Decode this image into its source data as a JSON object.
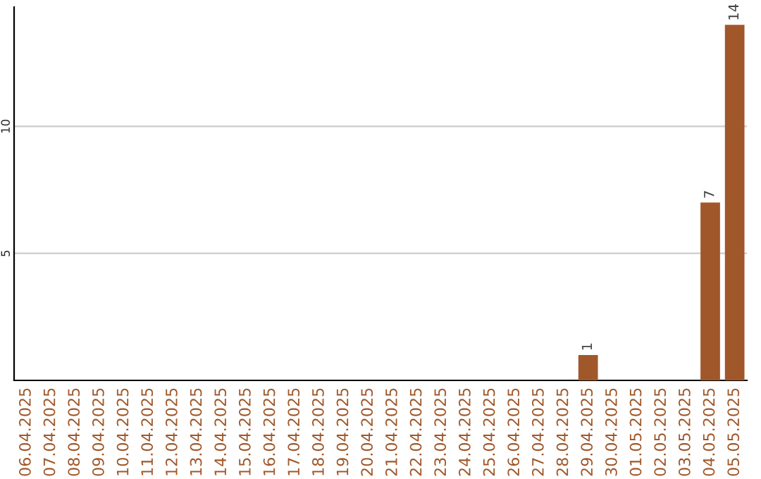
{
  "chart_data": {
    "type": "bar",
    "categories": [
      "06.04.2025",
      "07.04.2025",
      "08.04.2025",
      "09.04.2025",
      "10.04.2025",
      "11.04.2025",
      "12.04.2025",
      "13.04.2025",
      "14.04.2025",
      "15.04.2025",
      "16.04.2025",
      "17.04.2025",
      "18.04.2025",
      "19.04.2025",
      "20.04.2025",
      "21.04.2025",
      "22.04.2025",
      "23.04.2025",
      "24.04.2025",
      "25.04.2025",
      "26.04.2025",
      "27.04.2025",
      "28.04.2025",
      "29.04.2025",
      "30.04.2025",
      "01.05.2025",
      "02.05.2025",
      "03.05.2025",
      "04.05.2025",
      "05.05.2025"
    ],
    "values": [
      0,
      0,
      0,
      0,
      0,
      0,
      0,
      0,
      0,
      0,
      0,
      0,
      0,
      0,
      0,
      0,
      0,
      0,
      0,
      0,
      0,
      0,
      0,
      1,
      0,
      0,
      0,
      0,
      7,
      14
    ],
    "value_labels": [
      null,
      null,
      null,
      null,
      null,
      null,
      null,
      null,
      null,
      null,
      null,
      null,
      null,
      null,
      null,
      null,
      null,
      null,
      null,
      null,
      null,
      null,
      null,
      "1",
      null,
      null,
      null,
      null,
      "7",
      "14"
    ],
    "color": "#a0582a",
    "ylim": [
      0,
      14.7
    ],
    "yticks": [
      5,
      10
    ],
    "grid": "y"
  }
}
